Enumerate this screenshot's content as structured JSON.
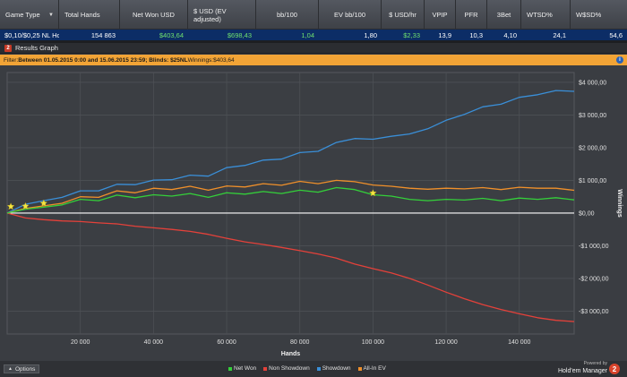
{
  "table": {
    "columns": [
      {
        "label": "Game Type",
        "dropdown": true
      },
      {
        "label": "Total Hands"
      },
      {
        "label": "Net Won USD"
      },
      {
        "label": "$ USD (EV adjusted)"
      },
      {
        "label": "bb/100"
      },
      {
        "label": "EV bb/100"
      },
      {
        "label": "$ USD/hr"
      },
      {
        "label": "VPIP"
      },
      {
        "label": "PFR"
      },
      {
        "label": "3Bet"
      },
      {
        "label": "WTSD%"
      },
      {
        "label": "W$SD%"
      }
    ],
    "row": [
      "$0,10/$0,25 NL Ho",
      "154 863",
      "$403,64",
      "$698,43",
      "1,04",
      "1,80",
      "$2,33",
      "13,9",
      "10,3",
      "4,10",
      "24,1",
      "54,6"
    ]
  },
  "panel": {
    "icon": "2",
    "title": "Results Graph"
  },
  "filter": {
    "prefix": "Filter: ",
    "text": "Between 01.05.2015 0:00 and 15.06.2015 23:59; Blinds: $25NL",
    "winnings_label": " Winnings: ",
    "winnings_value": "$403,64",
    "info_icon": "i"
  },
  "bottom": {
    "options_label": "Options",
    "powered_by": "Powered by",
    "brand": "Hold'em Manager",
    "logo": "2"
  },
  "colors": {
    "net_won": "#34d03a",
    "non_showdown": "#e4413a",
    "showdown": "#3a8fd8",
    "all_in_ev": "#f0902a",
    "filter_bar": "#f2a436",
    "row_highlight": "#0c2d66"
  },
  "chart_data": {
    "type": "line",
    "xlabel": "Hands",
    "ylabel": "Winnings",
    "xlim": [
      0,
      155000
    ],
    "ylim": [
      -3700,
      4300
    ],
    "x_ticks": [
      20000,
      40000,
      60000,
      80000,
      100000,
      120000,
      140000
    ],
    "x_tick_labels": [
      "20 000",
      "40 000",
      "60 000",
      "80 000",
      "100 000",
      "120 000",
      "140 000"
    ],
    "y_ticks": [
      4000,
      3000,
      2000,
      1000,
      0,
      -1000,
      -2000,
      -3000
    ],
    "y_tick_labels": [
      "$4 000,00",
      "$3 000,00",
      "$2 000,00",
      "$1 000,00",
      "$0,00",
      "-$1 000,00",
      "-$2 000,00",
      "-$3 000,00"
    ],
    "grid": true,
    "legend_position": "bottom",
    "series": [
      {
        "name": "Net Won",
        "color": "#34d03a",
        "x": [
          0,
          5000,
          10000,
          15000,
          20000,
          25000,
          30000,
          35000,
          40000,
          45000,
          50000,
          55000,
          60000,
          65000,
          70000,
          75000,
          80000,
          85000,
          90000,
          95000,
          100000,
          105000,
          110000,
          115000,
          120000,
          125000,
          130000,
          135000,
          140000,
          145000,
          150000,
          155000
        ],
        "y": [
          0,
          120,
          180,
          250,
          420,
          380,
          550,
          470,
          560,
          520,
          600,
          480,
          620,
          580,
          660,
          600,
          700,
          640,
          780,
          720,
          560,
          520,
          420,
          380,
          420,
          400,
          450,
          380,
          460,
          420,
          470,
          403.64
        ]
      },
      {
        "name": "Non Showdown",
        "color": "#e4413a",
        "x": [
          0,
          5000,
          10000,
          15000,
          20000,
          25000,
          30000,
          35000,
          40000,
          45000,
          50000,
          55000,
          60000,
          65000,
          70000,
          75000,
          80000,
          85000,
          90000,
          95000,
          100000,
          105000,
          110000,
          115000,
          120000,
          125000,
          130000,
          135000,
          140000,
          145000,
          150000,
          155000
        ],
        "y": [
          0,
          -150,
          -200,
          -240,
          -260,
          -300,
          -330,
          -400,
          -450,
          -500,
          -560,
          -650,
          -770,
          -880,
          -960,
          -1050,
          -1150,
          -1250,
          -1380,
          -1560,
          -1700,
          -1830,
          -2000,
          -2200,
          -2420,
          -2620,
          -2800,
          -2950,
          -3080,
          -3200,
          -3280,
          -3320
        ]
      },
      {
        "name": "Showdown",
        "color": "#3a8fd8",
        "x": [
          0,
          5000,
          10000,
          15000,
          20000,
          25000,
          30000,
          35000,
          40000,
          45000,
          50000,
          55000,
          60000,
          65000,
          70000,
          75000,
          80000,
          85000,
          90000,
          95000,
          100000,
          105000,
          110000,
          115000,
          120000,
          125000,
          130000,
          135000,
          140000,
          145000,
          150000,
          155000
        ],
        "y": [
          0,
          270,
          380,
          480,
          680,
          680,
          880,
          870,
          1010,
          1020,
          1160,
          1130,
          1390,
          1460,
          1620,
          1650,
          1850,
          1890,
          2160,
          2280,
          2260,
          2350,
          2420,
          2580,
          2840,
          3020,
          3250,
          3330,
          3540,
          3620,
          3750,
          3723.64
        ]
      },
      {
        "name": "All-In EV",
        "color": "#f0902a",
        "x": [
          0,
          5000,
          10000,
          15000,
          20000,
          25000,
          30000,
          35000,
          40000,
          45000,
          50000,
          55000,
          60000,
          65000,
          70000,
          75000,
          80000,
          85000,
          90000,
          95000,
          100000,
          105000,
          110000,
          115000,
          120000,
          125000,
          130000,
          135000,
          140000,
          145000,
          150000,
          155000
        ],
        "y": [
          0,
          140,
          220,
          300,
          500,
          480,
          680,
          620,
          760,
          720,
          820,
          700,
          830,
          800,
          900,
          850,
          970,
          900,
          1000,
          960,
          860,
          820,
          760,
          730,
          760,
          740,
          780,
          720,
          790,
          760,
          760,
          698.43
        ]
      }
    ],
    "markers": {
      "symbol": "star",
      "color": "#f5e642",
      "points": [
        {
          "x": 1000,
          "y": 200
        },
        {
          "x": 5000,
          "y": 210
        },
        {
          "x": 10000,
          "y": 300
        },
        {
          "x": 100000,
          "y": 610
        }
      ]
    }
  }
}
